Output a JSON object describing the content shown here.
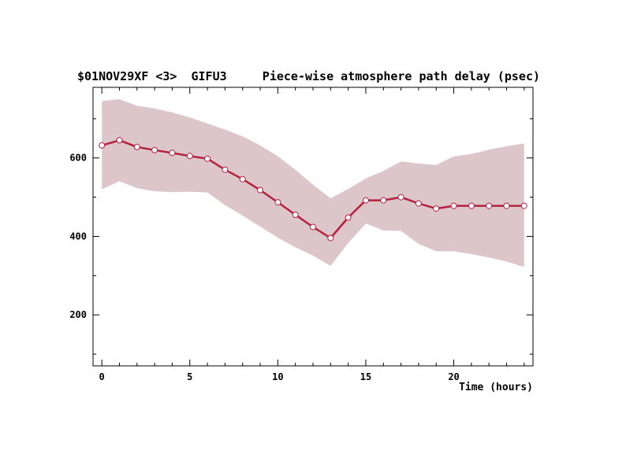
{
  "chart_data": {
    "type": "line",
    "title": "$01NOV29XF <3>  GIFU3     Piece-wise atmosphere path delay (psec)",
    "xlabel": "Time (hours)",
    "ylabel": "",
    "xlim": [
      -0.5,
      24.5
    ],
    "ylim": [
      70,
      780
    ],
    "x_ticks": [
      0,
      5,
      10,
      15,
      20
    ],
    "x_tick_labels": [
      "0",
      "5",
      "10",
      "15",
      "20"
    ],
    "y_ticks": [
      200,
      400,
      600
    ],
    "y_tick_labels": [
      "200",
      "400",
      "600"
    ],
    "x_minor_step": 1,
    "y_minor_step": 100,
    "grid": false,
    "legend": "none",
    "colors": {
      "line": "#b4213f",
      "band": "#dcc6ca",
      "marker_fill": "#ffffff",
      "axis": "#000000"
    },
    "series": [
      {
        "x": [
          0,
          1,
          2,
          3,
          4,
          5,
          6,
          7,
          8,
          9,
          10,
          11,
          12,
          13,
          14,
          15,
          16,
          17,
          18,
          19,
          20,
          21,
          22,
          23,
          24
        ],
        "values": [
          632,
          645,
          628,
          620,
          613,
          605,
          598,
          570,
          546,
          518,
          487,
          455,
          424,
          396,
          448,
          492,
          492,
          500,
          484,
          471,
          478,
          478,
          478,
          478,
          478
        ],
        "upper": [
          745,
          750,
          733,
          726,
          716,
          703,
          688,
          672,
          655,
          632,
          604,
          570,
          532,
          497,
          521,
          548,
          567,
          591,
          586,
          582,
          604,
          610,
          621,
          630,
          637
        ],
        "lower": [
          520,
          541,
          523,
          515,
          513,
          514,
          512,
          480,
          453,
          425,
          397,
          372,
          351,
          325,
          383,
          433,
          415,
          414,
          381,
          362,
          362,
          355,
          346,
          336,
          322
        ]
      }
    ]
  }
}
